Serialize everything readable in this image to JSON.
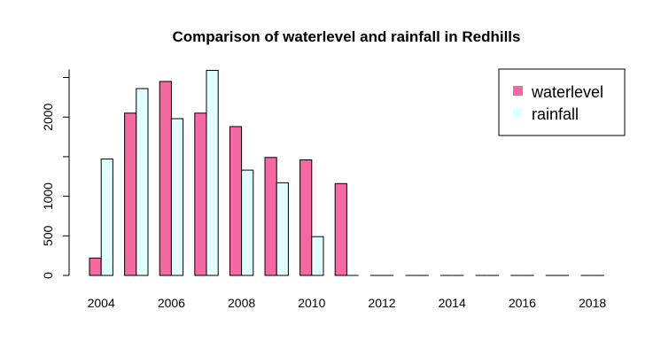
{
  "chart_data": {
    "type": "bar",
    "title": "Comparison of waterlevel and rainfall in Redhills",
    "xlabel": "",
    "ylabel": "",
    "categories": [
      "2004",
      "2005",
      "2006",
      "2007",
      "2008",
      "2009",
      "2010",
      "2011",
      "2012",
      "2013",
      "2014",
      "2015",
      "2016",
      "2017",
      "2018"
    ],
    "x_tick_labels": [
      "2004",
      "2006",
      "2008",
      "2010",
      "2012",
      "2014",
      "2016",
      "2018"
    ],
    "y_ticks": [
      0,
      500,
      1000,
      2000
    ],
    "y_tick_labels": [
      "0",
      "500",
      "1000",
      "2000"
    ],
    "ylim": [
      0,
      2600
    ],
    "grid": false,
    "legend_position": "top-right",
    "series": [
      {
        "name": "waterlevel",
        "color": "#f768a1",
        "values": [
          220,
          2050,
          2450,
          2050,
          1880,
          1490,
          1460,
          1160,
          0,
          0,
          0,
          0,
          0,
          0,
          0
        ]
      },
      {
        "name": "rainfall",
        "color": "#e0ffff",
        "values": [
          1470,
          2360,
          1980,
          2590,
          1330,
          1170,
          490,
          0,
          0,
          0,
          0,
          0,
          0,
          0,
          0
        ]
      }
    ]
  }
}
